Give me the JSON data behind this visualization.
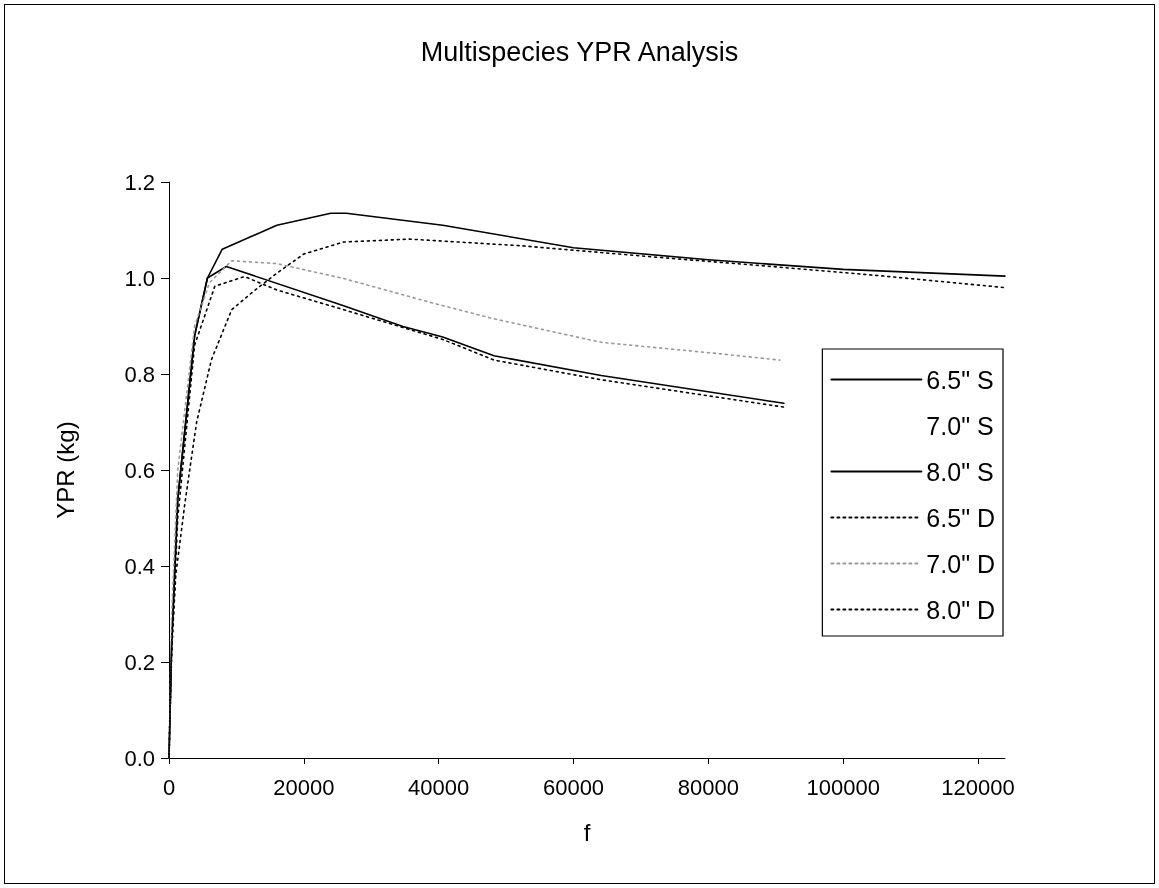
{
  "chart_data": {
    "type": "line",
    "title": "Multispecies YPR Analysis",
    "xlabel": "f",
    "ylabel": "YPR (kg)",
    "xlim": [
      0,
      124000
    ],
    "xticks": [
      0,
      20000,
      40000,
      60000,
      80000,
      100000,
      120000
    ],
    "ylim": [
      0,
      1.2
    ],
    "yticks": [
      {
        "value": 0,
        "label": "0.0"
      },
      0.2,
      0.4,
      0.6,
      0.8,
      {
        "value": 1,
        "label": "1.0"
      },
      1.2
    ],
    "grid": false,
    "legend": "right",
    "marker": "none",
    "series": [
      {
        "name": "6.5\" S",
        "color": "#000000",
        "line_style": "solid",
        "x": [
          0,
          400,
          1300,
          3800,
          5700,
          8500,
          25900,
          34700,
          40600,
          48200,
          64100,
          91200
        ],
        "values": [
          0,
          0.24,
          0.54,
          0.88,
          1.0,
          1.024,
          0.942,
          0.899,
          0.877,
          0.838,
          0.797,
          0.739
        ]
      },
      {
        "name": "7.0\" S",
        "line_style": "solid"
      },
      {
        "name": "8.0\" S",
        "color": "#000000",
        "line_style": "solid",
        "x": [
          0,
          400,
          1300,
          3800,
          5700,
          7900,
          16000,
          24000,
          26300,
          40600,
          60000,
          80000,
          100000,
          124000
        ],
        "values": [
          0,
          0.24,
          0.54,
          0.88,
          1.0,
          1.06,
          1.11,
          1.135,
          1.135,
          1.11,
          1.063,
          1.038,
          1.018,
          1.004
        ]
      },
      {
        "name": "6.5\" D",
        "color": "#000000",
        "line_style": "dotted",
        "x": [
          0,
          400,
          1300,
          3800,
          6800,
          11200,
          16000,
          25900,
          40600,
          48200,
          64100,
          91200
        ],
        "values": [
          0,
          0.22,
          0.5,
          0.86,
          0.983,
          1.003,
          0.975,
          0.934,
          0.872,
          0.829,
          0.788,
          0.731
        ]
      },
      {
        "name": "7.0\" D",
        "color": "#999999",
        "line_style": "dotted",
        "x": [
          0,
          400,
          1300,
          3800,
          6000,
          9300,
          16000,
          25900,
          39100,
          48200,
          64100,
          81800,
          90600
        ],
        "values": [
          0,
          0.3,
          0.6,
          0.9,
          0.99,
          1.036,
          1.03,
          0.999,
          0.948,
          0.915,
          0.866,
          0.842,
          0.829
        ]
      },
      {
        "name": "8.0\" D",
        "color": "#000000",
        "line_style": "dotted",
        "x": [
          0,
          300,
          1000,
          2350,
          4100,
          6300,
          9300,
          12600,
          16000,
          20000,
          25900,
          35700,
          52400,
          70000,
          87600,
          105300,
          124000
        ],
        "values": [
          0,
          0.2,
          0.38,
          0.53,
          0.7,
          0.83,
          0.934,
          0.973,
          1.01,
          1.05,
          1.075,
          1.081,
          1.067,
          1.046,
          1.026,
          1.005,
          0.98
        ]
      }
    ]
  }
}
